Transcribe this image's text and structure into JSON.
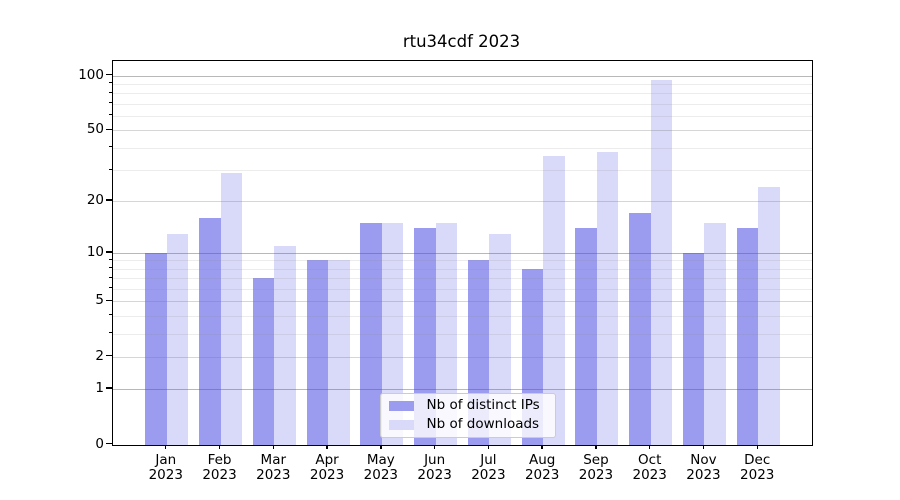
{
  "title": "rtu34cdf 2023",
  "chart_data": {
    "type": "bar",
    "title": "rtu34cdf 2023",
    "categories": [
      "Jan 2023",
      "Feb 2023",
      "Mar 2023",
      "Apr 2023",
      "May 2023",
      "Jun 2023",
      "Jul 2023",
      "Aug 2023",
      "Sep 2023",
      "Oct 2023",
      "Nov 2023",
      "Dec 2023"
    ],
    "series": [
      {
        "name": "Nb of distinct IPs",
        "color": "#9b9bef",
        "values": [
          10,
          16,
          7,
          9,
          15,
          14,
          9,
          8,
          14,
          17,
          10,
          14
        ]
      },
      {
        "name": "Nb of downloads",
        "color": "#d9d9f9",
        "values": [
          13,
          29,
          11,
          9,
          15,
          15,
          13,
          36,
          38,
          95,
          15,
          24
        ]
      }
    ],
    "xlabel": "",
    "ylabel": "",
    "yscale": "log1p",
    "ylim": [
      0,
      120
    ],
    "yticks": [
      0,
      1,
      2,
      5,
      10,
      20,
      50,
      100
    ],
    "yticks_strong": [
      1,
      10,
      100
    ],
    "yticks_minor": [
      3,
      4,
      6,
      7,
      8,
      9,
      30,
      40,
      60,
      70,
      80,
      90
    ],
    "grid": true,
    "grid_over_bars": true,
    "legend_position": "lower center",
    "background_color": "#ffffff",
    "spine_color": "#000000"
  }
}
